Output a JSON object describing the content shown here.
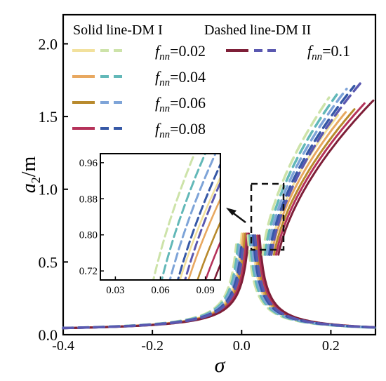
{
  "chart_data": {
    "type": "line",
    "title": "",
    "xlabel": "σ",
    "ylabel_main": "a",
    "ylabel_sub": "2",
    "ylabel_unit": "/m",
    "xlim": [
      -0.4,
      0.3
    ],
    "ylim": [
      0.0,
      2.2
    ],
    "xticks": [
      -0.4,
      -0.2,
      0.0,
      0.2
    ],
    "xtick_labels": [
      "-0.4",
      "-0.2",
      "0.0",
      "0.2"
    ],
    "yticks": [
      0.0,
      0.5,
      1.0,
      1.5,
      2.0
    ],
    "ytick_labels": [
      "0.0",
      "0.5",
      "1.0",
      "1.5",
      "2.0"
    ],
    "grid": false,
    "legend": {
      "header_solid": "Solid line-DM I",
      "header_dashed": "Dashed line-DM II",
      "param_main": "f",
      "param_sub": "nn",
      "entries": [
        {
          "value": "=0.02",
          "solid_color": "#F2E19D",
          "dashed_color": "#CDE3A9"
        },
        {
          "value": "=0.04",
          "solid_color": "#E8A860",
          "dashed_color": "#62B8B8"
        },
        {
          "value": "=0.06",
          "solid_color": "#B88A2D",
          "dashed_color": "#7EA4D8"
        },
        {
          "value": "=0.08",
          "solid_color": "#B5325A",
          "dashed_color": "#3658A6"
        },
        {
          "value": "=0.1",
          "solid_color": "#7E1F38",
          "dashed_color": "#5A58B0"
        }
      ]
    },
    "series": [
      {
        "fnn": 0.02,
        "model": "DM I",
        "style": "solid",
        "color": "#F2E19D",
        "peak": [
          0.21,
          1.52
        ]
      },
      {
        "fnn": 0.04,
        "model": "DM I",
        "style": "solid",
        "color": "#E8A860",
        "peak": [
          0.23,
          1.55
        ]
      },
      {
        "fnn": 0.06,
        "model": "DM I",
        "style": "solid",
        "color": "#B88A2D",
        "peak": [
          0.25,
          1.57
        ]
      },
      {
        "fnn": 0.08,
        "model": "DM I",
        "style": "solid",
        "color": "#B5325A",
        "peak": [
          0.27,
          1.6
        ]
      },
      {
        "fnn": 0.1,
        "model": "DM I",
        "style": "solid",
        "color": "#7E1F38",
        "peak": [
          0.29,
          1.62
        ]
      },
      {
        "fnn": 0.02,
        "model": "DM II",
        "style": "dashed",
        "color": "#CDE3A9",
        "peak": [
          0.19,
          1.64
        ]
      },
      {
        "fnn": 0.04,
        "model": "DM II",
        "style": "dashed",
        "color": "#62B8B8",
        "peak": [
          0.21,
          1.67
        ]
      },
      {
        "fnn": 0.06,
        "model": "DM II",
        "style": "dashed",
        "color": "#7EA4D8",
        "peak": [
          0.23,
          1.7
        ]
      },
      {
        "fnn": 0.08,
        "model": "DM II",
        "style": "dashed",
        "color": "#3658A6",
        "peak": [
          0.25,
          1.73
        ]
      },
      {
        "fnn": 0.1,
        "model": "DM II",
        "style": "dashed",
        "color": "#5A58B0",
        "peak": [
          0.27,
          1.77
        ]
      }
    ],
    "inset": {
      "xlim": [
        0.02,
        0.1
      ],
      "ylim": [
        0.7,
        0.98
      ],
      "xtick_labels": [
        "0.03",
        "0.06",
        "0.09"
      ],
      "ytick_labels": [
        "0.72",
        "0.80",
        "0.88",
        "0.96"
      ],
      "zoom_box_x": [
        0.03,
        0.09
      ],
      "zoom_box_y": [
        0.62,
        1.04
      ]
    }
  }
}
